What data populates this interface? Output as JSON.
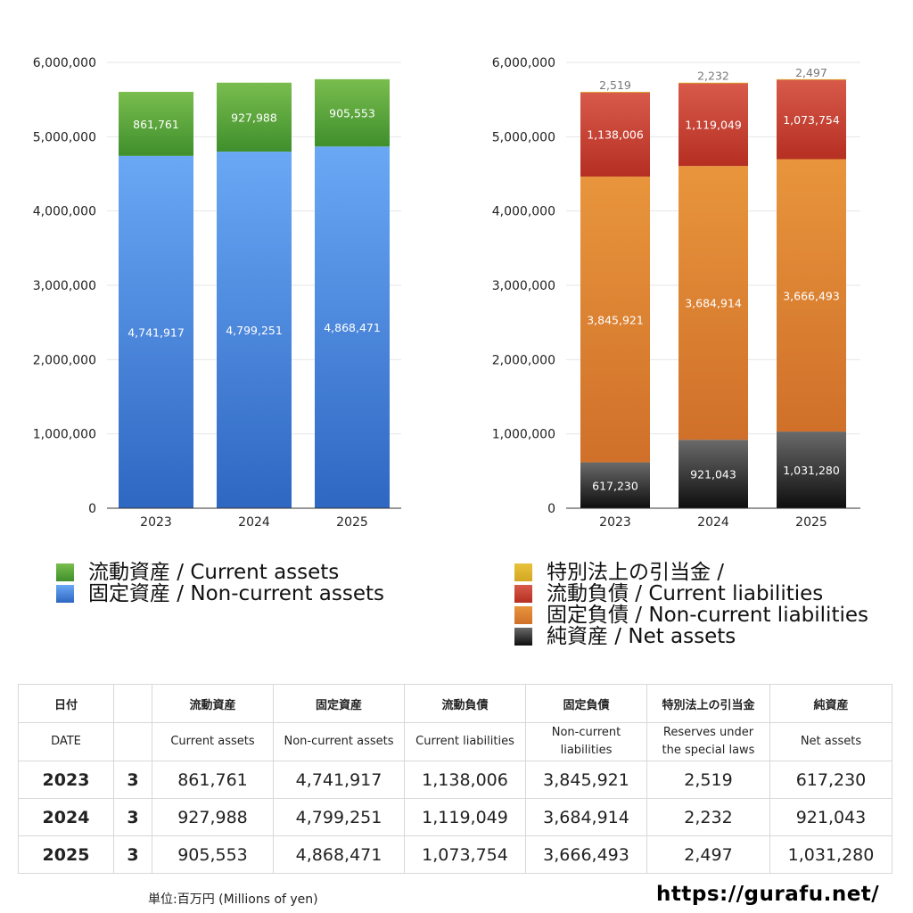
{
  "chart_data": [
    {
      "type": "bar",
      "stacked": true,
      "categories": [
        "2023",
        "2024",
        "2025"
      ],
      "ylim": [
        0,
        6000000
      ],
      "yticks": [
        "0",
        "1,000,000",
        "2,000,000",
        "3,000,000",
        "4,000,000",
        "5,000,000",
        "6,000,000"
      ],
      "grid": true,
      "legend_position": "bottom",
      "series": [
        {
          "name": "固定資産 / Non-current assets",
          "values": [
            4741917,
            4799251,
            4868471
          ],
          "labels": [
            "4,741,917",
            "4,799,251",
            "4,868,471"
          ],
          "color_top": "#6aa8f5",
          "color_bottom": "#2e67c2",
          "label_color": "#ffffff"
        },
        {
          "name": "流動資産 / Current assets",
          "values": [
            861761,
            927988,
            905553
          ],
          "labels": [
            "861,761",
            "927,988",
            "905,553"
          ],
          "color_top": "#79bd4e",
          "color_bottom": "#3f8f2c",
          "label_color": "#ffffff"
        }
      ]
    },
    {
      "type": "bar",
      "stacked": true,
      "categories": [
        "2023",
        "2024",
        "2025"
      ],
      "ylim": [
        0,
        6000000
      ],
      "yticks": [
        "0",
        "1,000,000",
        "2,000,000",
        "3,000,000",
        "4,000,000",
        "5,000,000",
        "6,000,000"
      ],
      "grid": true,
      "legend_position": "bottom",
      "series": [
        {
          "name": "純資産 / Net assets",
          "values": [
            617230,
            921043,
            1031280
          ],
          "labels": [
            "617,230",
            "921,043",
            "1,031,280"
          ],
          "color_top": "#6a6a6a",
          "color_bottom": "#0e0e0e",
          "label_color": "#ffffff"
        },
        {
          "name": "固定負債 / Non-current liabilities",
          "values": [
            3845921,
            3684914,
            3666493
          ],
          "labels": [
            "3,845,921",
            "3,684,914",
            "3,666,493"
          ],
          "color_top": "#e8953c",
          "color_bottom": "#d0702a",
          "label_color": "#ffffff"
        },
        {
          "name": "流動負債 / Current liabilities",
          "values": [
            1138006,
            1119049,
            1073754
          ],
          "labels": [
            "1,138,006",
            "1,119,049",
            "1,073,754"
          ],
          "color_top": "#d85a4a",
          "color_bottom": "#b52f22",
          "label_color": "#ffffff"
        },
        {
          "name": "特別法上の引当金 /",
          "values": [
            2519,
            2232,
            2497
          ],
          "labels": [
            "2,519",
            "2,232",
            "2,497"
          ],
          "color_top": "#e8c23a",
          "color_bottom": "#d4a722",
          "label_color": "#666666"
        }
      ]
    }
  ],
  "legend_left": [
    {
      "label": "流動資産 / Current assets",
      "color_top": "#79bd4e",
      "color_bottom": "#3f8f2c"
    },
    {
      "label": "固定資産 / Non-current assets",
      "color_top": "#6aa8f5",
      "color_bottom": "#2e67c2"
    }
  ],
  "legend_right": [
    {
      "label": "特別法上の引当金 /",
      "color_top": "#e8c23a",
      "color_bottom": "#d4a722"
    },
    {
      "label": "流動負債 / Current liabilities",
      "color_top": "#d85a4a",
      "color_bottom": "#b52f22"
    },
    {
      "label": "固定負債 / Non-current liabilities",
      "color_top": "#e8953c",
      "color_bottom": "#d0702a"
    },
    {
      "label": "純資産 / Net assets",
      "color_top": "#6a6a6a",
      "color_bottom": "#0e0e0e"
    }
  ],
  "table": {
    "header_ja": [
      "日付",
      "",
      "流動資産",
      "固定資産",
      "流動負債",
      "固定負債",
      "特別法上の引当金",
      "純資産"
    ],
    "header_en": [
      "DATE",
      "",
      "Current assets",
      "Non-current assets",
      "Current liabilities",
      "Non-current\nliabilities",
      "Reserves under\nthe special laws",
      "Net assets"
    ],
    "rows": [
      [
        "2023",
        "3",
        "861,761",
        "4,741,917",
        "1,138,006",
        "3,845,921",
        "2,519",
        "617,230"
      ],
      [
        "2024",
        "3",
        "927,988",
        "4,799,251",
        "1,119,049",
        "3,684,914",
        "2,232",
        "921,043"
      ],
      [
        "2025",
        "3",
        "905,553",
        "4,868,471",
        "1,073,754",
        "3,666,493",
        "2,497",
        "1,031,280"
      ]
    ]
  },
  "footer": {
    "unit": "単位:百万円 (Millions of yen)",
    "url": "https://gurafu.net/"
  }
}
